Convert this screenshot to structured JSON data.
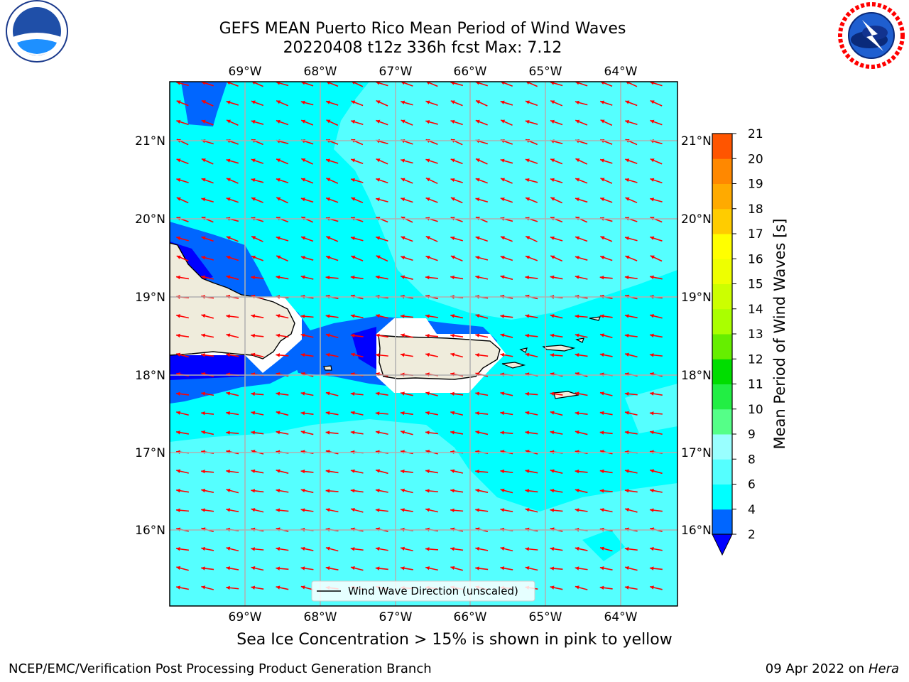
{
  "title": {
    "line1": "GEFS MEAN Puerto Rico Mean Period of Wind Waves",
    "line2": "20220408 t12z 336h fcst   Max: 7.12"
  },
  "map": {
    "lon_labels": [
      "69°W",
      "68°W",
      "67°W",
      "66°W",
      "65°W",
      "64°W"
    ],
    "lat_labels": [
      "21°N",
      "20°N",
      "19°N",
      "18°N",
      "17°N",
      "16°N"
    ],
    "legend_label": "Wind Wave Direction (unscaled)",
    "arrow_color": "#ff0000",
    "land_color": "#efecdc"
  },
  "colorbar": {
    "title": "Mean Period of Wind Waves [s]",
    "levels": [
      "2",
      "4",
      "6",
      "8",
      "9",
      "10",
      "11",
      "12",
      "13",
      "14",
      "15",
      "16",
      "17",
      "18",
      "19",
      "20",
      "21"
    ],
    "colors": [
      "#0066ff",
      "#00ffff",
      "#55ffff",
      "#99ffff",
      "#55ff88",
      "#22ee44",
      "#00dd00",
      "#66ee00",
      "#aaff00",
      "#ccff00",
      "#eeff00",
      "#ffff00",
      "#ffcc00",
      "#ffaa00",
      "#ff8800",
      "#ff5500",
      "#ff2a00",
      "#ff0000"
    ],
    "under_color": "#0000ff"
  },
  "note": "Sea Ice Concentration > 15% is shown in pink to yellow",
  "footer": {
    "left": "NCEP/EMC/Verification Post Processing Product Generation Branch",
    "date": "09 Apr 2022 on",
    "host": "Hera"
  },
  "logos": {
    "noaa": "NOAA",
    "nws": "NATIONAL WEATHER SERVICE"
  }
}
